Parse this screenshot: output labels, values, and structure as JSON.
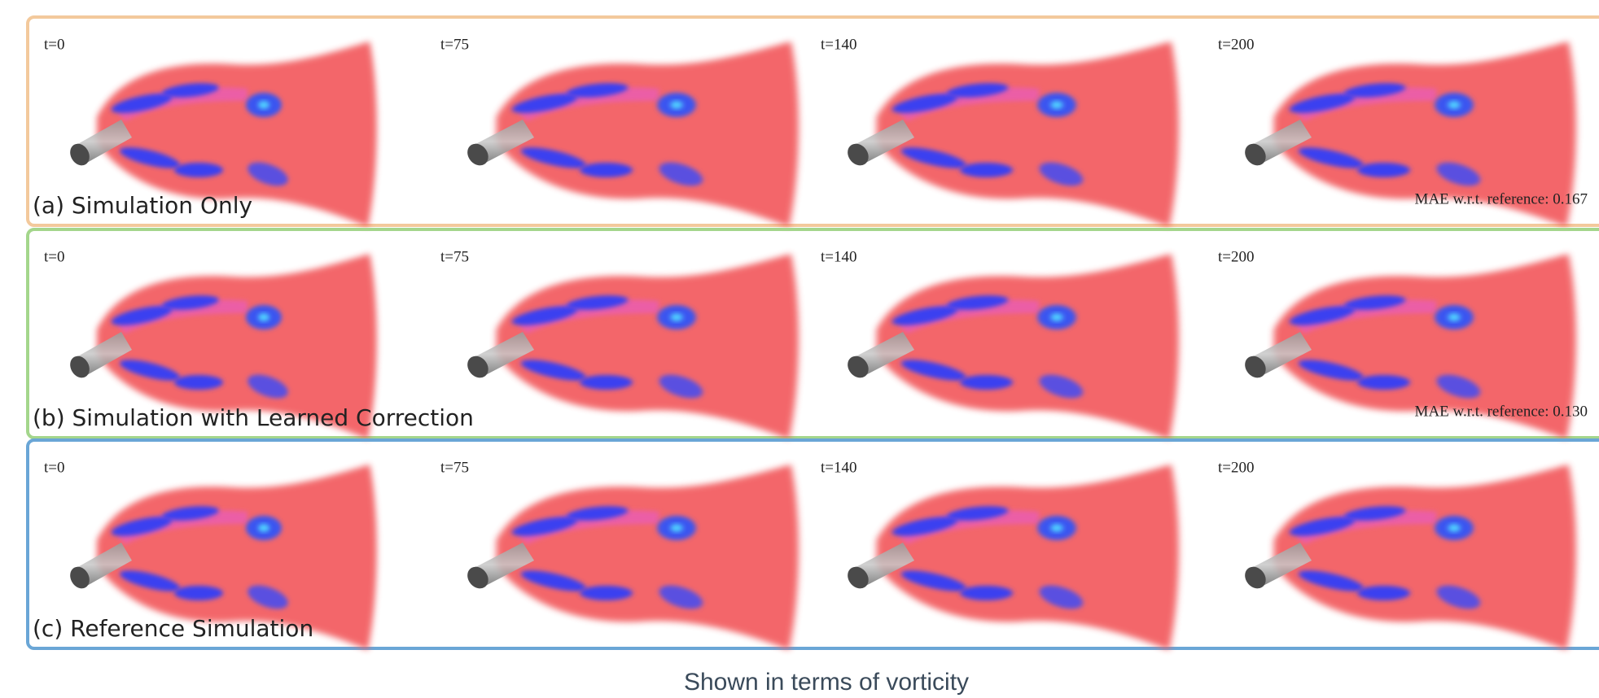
{
  "panels": [
    {
      "label": "(a) Simulation Only",
      "times": [
        "t=0",
        "t=75",
        "t=140",
        "t=200"
      ],
      "mae": "MAE w.r.t. reference: 0.167"
    },
    {
      "label": "(b) Simulation with Learned Correction",
      "times": [
        "t=0",
        "t=75",
        "t=140",
        "t=200"
      ],
      "mae": "MAE w.r.t. reference: 0.130"
    },
    {
      "label": "(c) Reference Simulation",
      "times": [
        "t=0",
        "t=75",
        "t=140",
        "t=200"
      ]
    }
  ],
  "caption": "Shown in terms of vorticity"
}
